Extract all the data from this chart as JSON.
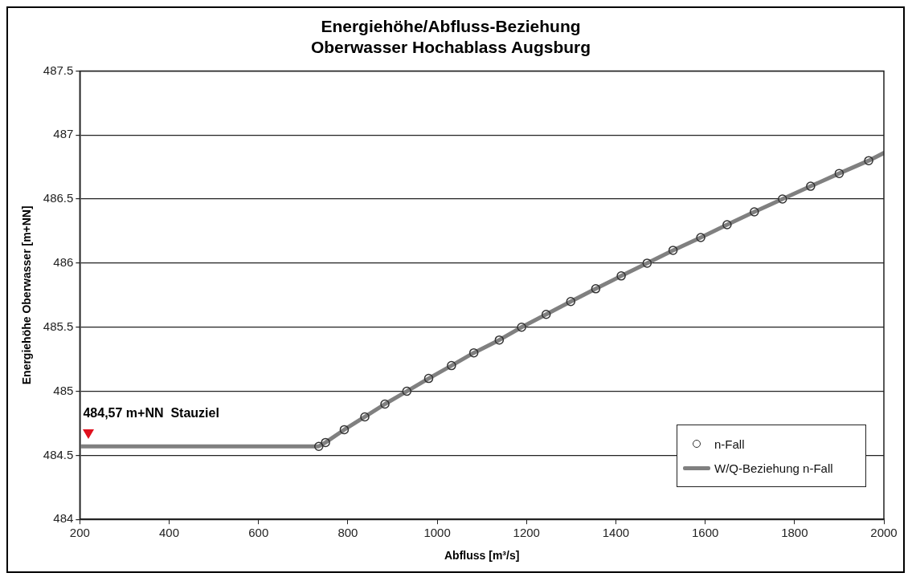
{
  "chart_data": {
    "type": "line",
    "title": "Energiehöhe/Abfluss-Beziehung\nOberwasser Hochablass Augsburg",
    "xlabel": "Abfluss [m³/s]",
    "ylabel": "Energiehöhe Oberwasser [m+NN]",
    "xlim": [
      200,
      2000
    ],
    "xticks": [
      200,
      400,
      600,
      800,
      1000,
      1200,
      1400,
      1600,
      1800,
      2000
    ],
    "ylim": [
      484,
      487.5
    ],
    "yticks": [
      484,
      484.5,
      485,
      485.5,
      486,
      486.5,
      487,
      487.5
    ],
    "grid": "y",
    "legend": "bottom right",
    "annotations": [
      {
        "text": "484,57 m+NN  Stauziel",
        "x": 220,
        "y": 484.57
      }
    ],
    "series": [
      {
        "name": "n-Fall",
        "type": "scatter",
        "marker": "circle",
        "color": "#333333",
        "x": [
          735,
          750,
          792,
          838,
          883,
          932,
          981,
          1032,
          1082,
          1139,
          1189,
          1244,
          1299,
          1355,
          1412,
          1470,
          1528,
          1590,
          1649,
          1710,
          1773,
          1836,
          1900,
          1966
        ],
        "values": [
          484.57,
          484.6,
          484.7,
          484.8,
          484.9,
          485.0,
          485.1,
          485.2,
          485.3,
          485.4,
          485.5,
          485.6,
          485.7,
          485.8,
          485.9,
          486.0,
          486.1,
          486.2,
          486.3,
          486.4,
          486.5,
          486.6,
          486.7,
          486.8
        ]
      },
      {
        "name": "W/Q-Beziehung n-Fall",
        "type": "line",
        "marker": "none",
        "line_style": "solid",
        "color": "#808080",
        "x": [
          200,
          735,
          750,
          792,
          838,
          883,
          932,
          981,
          1032,
          1082,
          1139,
          1189,
          1244,
          1299,
          1355,
          1412,
          1470,
          1528,
          1590,
          1649,
          1710,
          1773,
          1836,
          1900,
          1966,
          2000
        ],
        "values": [
          484.57,
          484.57,
          484.6,
          484.7,
          484.8,
          484.9,
          485.0,
          485.1,
          485.2,
          485.3,
          485.4,
          485.5,
          485.6,
          485.7,
          485.8,
          485.9,
          486.0,
          486.1,
          486.2,
          486.3,
          486.4,
          486.5,
          486.6,
          486.7,
          486.8,
          486.86
        ]
      }
    ]
  }
}
